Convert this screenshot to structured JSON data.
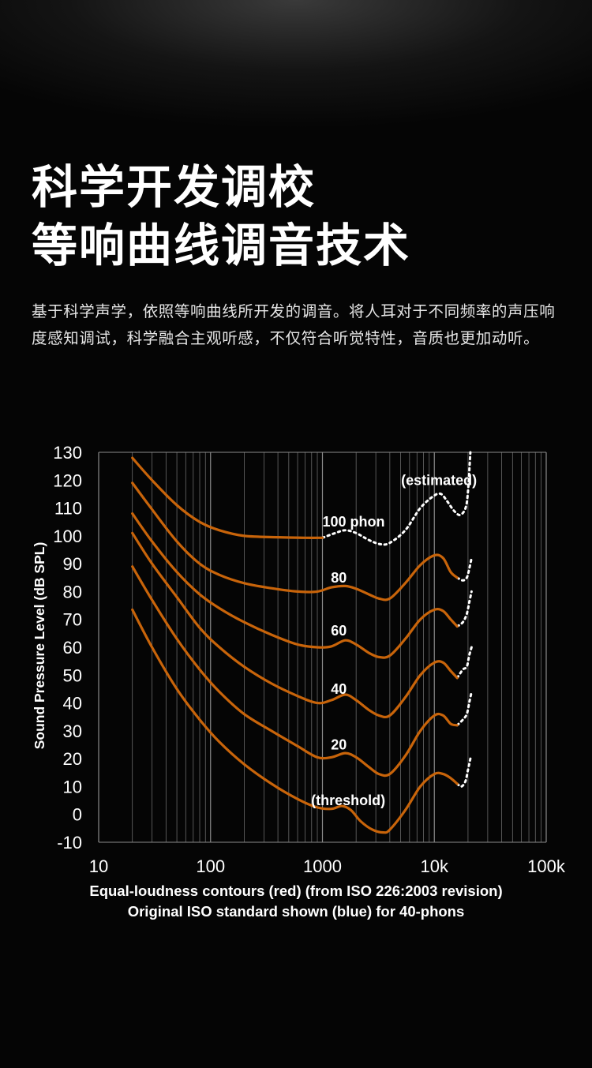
{
  "heading": {
    "line1": "科学开发调校",
    "line2": "等响曲线调音技术"
  },
  "description": "基于科学声学，依照等响曲线所开发的调音。将人耳对于不同频率的声压响度感知调试，科学融合主观听感，不仅符合听觉特性，音质也更加动听。",
  "chart_data": {
    "type": "line",
    "xscale": "log",
    "xlim": [
      10,
      100000
    ],
    "ylim": [
      -10,
      130
    ],
    "xticks": [
      "10",
      "100",
      "1000",
      "10k",
      "100k"
    ],
    "xtick_values": [
      10,
      100,
      1000,
      10000,
      100000
    ],
    "yticks": [
      130,
      120,
      110,
      100,
      90,
      80,
      70,
      60,
      50,
      40,
      30,
      20,
      10,
      0,
      -10
    ],
    "ylabel": "Sound Pressure Level (dB SPL)",
    "caption_line1": "Equal-loudness contours (red) (from ISO 226:2003 revision)",
    "caption_line2": "Original ISO standard shown (blue) for 40-phons",
    "grid": true,
    "colors": {
      "curve": "#c8640a",
      "estimated": "#ffffff",
      "grid": "#6a6a6a"
    },
    "series": [
      {
        "name": "100 phon",
        "solid": [
          [
            20,
            128
          ],
          [
            30,
            120
          ],
          [
            50,
            111
          ],
          [
            80,
            105
          ],
          [
            120,
            102
          ],
          [
            200,
            100
          ],
          [
            400,
            99.5
          ],
          [
            700,
            99.3
          ],
          [
            1000,
            99.3
          ]
        ],
        "dotted": [
          [
            1000,
            99.3
          ],
          [
            1300,
            101
          ],
          [
            1600,
            102
          ],
          [
            2000,
            101
          ],
          [
            2600,
            98.5
          ],
          [
            3300,
            97
          ],
          [
            4000,
            97.5
          ],
          [
            5500,
            102
          ],
          [
            7500,
            110
          ],
          [
            10000,
            114.5
          ],
          [
            11500,
            115
          ],
          [
            13000,
            112.5
          ],
          [
            15000,
            109
          ],
          [
            17000,
            107.5
          ],
          [
            19000,
            110
          ],
          [
            20000,
            116
          ],
          [
            21000,
            130
          ]
        ]
      },
      {
        "name": "80",
        "solid": [
          [
            20,
            119
          ],
          [
            30,
            109.5
          ],
          [
            50,
            98
          ],
          [
            80,
            90
          ],
          [
            120,
            86
          ],
          [
            200,
            83
          ],
          [
            350,
            81.2
          ],
          [
            600,
            80
          ],
          [
            900,
            80
          ],
          [
            1200,
            81.5
          ],
          [
            1600,
            82
          ],
          [
            2000,
            81
          ],
          [
            2600,
            79
          ],
          [
            3200,
            77.5
          ],
          [
            4000,
            77.5
          ],
          [
            5500,
            83
          ],
          [
            7500,
            89.5
          ],
          [
            10000,
            93
          ],
          [
            12000,
            92
          ],
          [
            14000,
            87
          ],
          [
            16000,
            85
          ]
        ],
        "dotted": [
          [
            16000,
            85
          ],
          [
            18000,
            84
          ],
          [
            19500,
            85
          ],
          [
            20500,
            88
          ],
          [
            21500,
            92
          ]
        ]
      },
      {
        "name": "60",
        "solid": [
          [
            20,
            108
          ],
          [
            30,
            98
          ],
          [
            50,
            87
          ],
          [
            80,
            79
          ],
          [
            120,
            74
          ],
          [
            200,
            69
          ],
          [
            350,
            64.5
          ],
          [
            600,
            61
          ],
          [
            900,
            60
          ],
          [
            1200,
            60.3
          ],
          [
            1600,
            62.5
          ],
          [
            2000,
            61
          ],
          [
            2600,
            58
          ],
          [
            3200,
            56.5
          ],
          [
            4000,
            57
          ],
          [
            5500,
            63
          ],
          [
            7500,
            70
          ],
          [
            10000,
            73.5
          ],
          [
            12000,
            73
          ],
          [
            14000,
            70
          ],
          [
            16000,
            67.5
          ]
        ],
        "dotted": [
          [
            16000,
            67.5
          ],
          [
            18000,
            69
          ],
          [
            19500,
            72
          ],
          [
            20500,
            76
          ],
          [
            21500,
            80
          ]
        ]
      },
      {
        "name": "40",
        "solid": [
          [
            20,
            101
          ],
          [
            30,
            90
          ],
          [
            50,
            78
          ],
          [
            80,
            67
          ],
          [
            120,
            60
          ],
          [
            200,
            53
          ],
          [
            350,
            47
          ],
          [
            600,
            42.5
          ],
          [
            900,
            40
          ],
          [
            1200,
            41
          ],
          [
            1600,
            43
          ],
          [
            2000,
            41
          ],
          [
            2600,
            37.5
          ],
          [
            3200,
            35.5
          ],
          [
            4000,
            35.5
          ],
          [
            5500,
            42
          ],
          [
            7500,
            50
          ],
          [
            10000,
            54.5
          ],
          [
            12000,
            54.5
          ],
          [
            14000,
            51.5
          ],
          [
            16000,
            49
          ]
        ],
        "dotted": [
          [
            16000,
            49
          ],
          [
            18000,
            52
          ],
          [
            19500,
            53
          ],
          [
            20500,
            57
          ],
          [
            21500,
            60
          ]
        ]
      },
      {
        "name": "20",
        "solid": [
          [
            20,
            89
          ],
          [
            30,
            77
          ],
          [
            50,
            63
          ],
          [
            80,
            52
          ],
          [
            120,
            44
          ],
          [
            200,
            36
          ],
          [
            350,
            30
          ],
          [
            600,
            24.5
          ],
          [
            900,
            20.5
          ],
          [
            1200,
            20.5
          ],
          [
            1600,
            22
          ],
          [
            2000,
            20.5
          ],
          [
            2600,
            17
          ],
          [
            3200,
            14.5
          ],
          [
            4000,
            14.5
          ],
          [
            5500,
            21
          ],
          [
            7500,
            30
          ],
          [
            10000,
            35.5
          ],
          [
            12000,
            35.5
          ],
          [
            14000,
            32.5
          ],
          [
            16000,
            32
          ]
        ],
        "dotted": [
          [
            16000,
            32
          ],
          [
            18000,
            34
          ],
          [
            19500,
            36
          ],
          [
            20500,
            40
          ],
          [
            21500,
            44
          ]
        ]
      },
      {
        "name": "(threshold)",
        "solid": [
          [
            20,
            73.5
          ],
          [
            30,
            60
          ],
          [
            50,
            45
          ],
          [
            80,
            34
          ],
          [
            120,
            26
          ],
          [
            200,
            18
          ],
          [
            350,
            11
          ],
          [
            600,
            5.5
          ],
          [
            900,
            2.5
          ],
          [
            1200,
            2
          ],
          [
            1500,
            3
          ],
          [
            1800,
            1.5
          ],
          [
            2200,
            -2.5
          ],
          [
            2800,
            -5.5
          ],
          [
            3500,
            -6.5
          ],
          [
            4000,
            -5.5
          ],
          [
            5500,
            1.5
          ],
          [
            7500,
            10
          ],
          [
            10000,
            14.5
          ],
          [
            12000,
            14.5
          ],
          [
            14000,
            13
          ],
          [
            16000,
            11
          ]
        ],
        "dotted": [
          [
            16000,
            11
          ],
          [
            17500,
            10
          ],
          [
            19000,
            12
          ],
          [
            20000,
            16
          ],
          [
            21000,
            20
          ]
        ]
      }
    ],
    "annotations": [
      {
        "text": "(estimated)",
        "x": 11000,
        "y": 120
      },
      {
        "text": "100 phon",
        "x": 1900,
        "y": 105
      },
      {
        "text": "80",
        "x": 1400,
        "y": 85
      },
      {
        "text": "60",
        "x": 1400,
        "y": 66
      },
      {
        "text": "40",
        "x": 1400,
        "y": 45
      },
      {
        "text": "20",
        "x": 1400,
        "y": 25
      },
      {
        "text": "(threshold)",
        "x": 1700,
        "y": 5
      }
    ]
  }
}
